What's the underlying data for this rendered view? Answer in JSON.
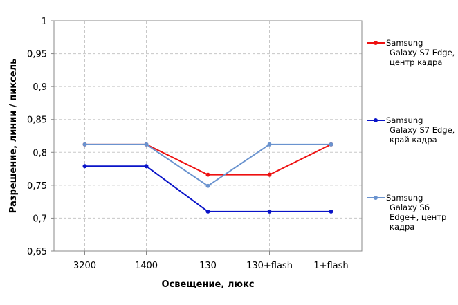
{
  "chart_data": {
    "type": "line",
    "title": "",
    "xlabel": "Освещение,  люкс",
    "ylabel": "Разрешение,  линии / пиксель",
    "ylim": [
      0.65,
      1
    ],
    "yticks": [
      "0,65",
      "0,7",
      "0,75",
      "0,8",
      "0,85",
      "0,9",
      "0,95",
      "1"
    ],
    "categories": [
      "3200",
      "1400",
      "130",
      "130+flash",
      "1+flash"
    ],
    "grid": true,
    "legend_position": "right",
    "series": [
      {
        "name_lines": [
          "Samsung",
          "Galaxy S7 Edge,",
          "центр кадра"
        ],
        "color": "#ee1111",
        "values": [
          0.812,
          0.812,
          0.766,
          0.766,
          0.812
        ]
      },
      {
        "name_lines": [
          "Samsung",
          "Galaxy S7 Edge,",
          "край кадра"
        ],
        "color": "#0a14c8",
        "values": [
          0.779,
          0.779,
          0.71,
          0.71,
          0.71
        ]
      },
      {
        "name_lines": [
          "Samsung",
          "Galaxy S6",
          "Edge+, центр",
          "кадра"
        ],
        "color": "#6a93cf",
        "values": [
          0.812,
          0.812,
          0.749,
          0.812,
          0.812
        ]
      }
    ]
  }
}
